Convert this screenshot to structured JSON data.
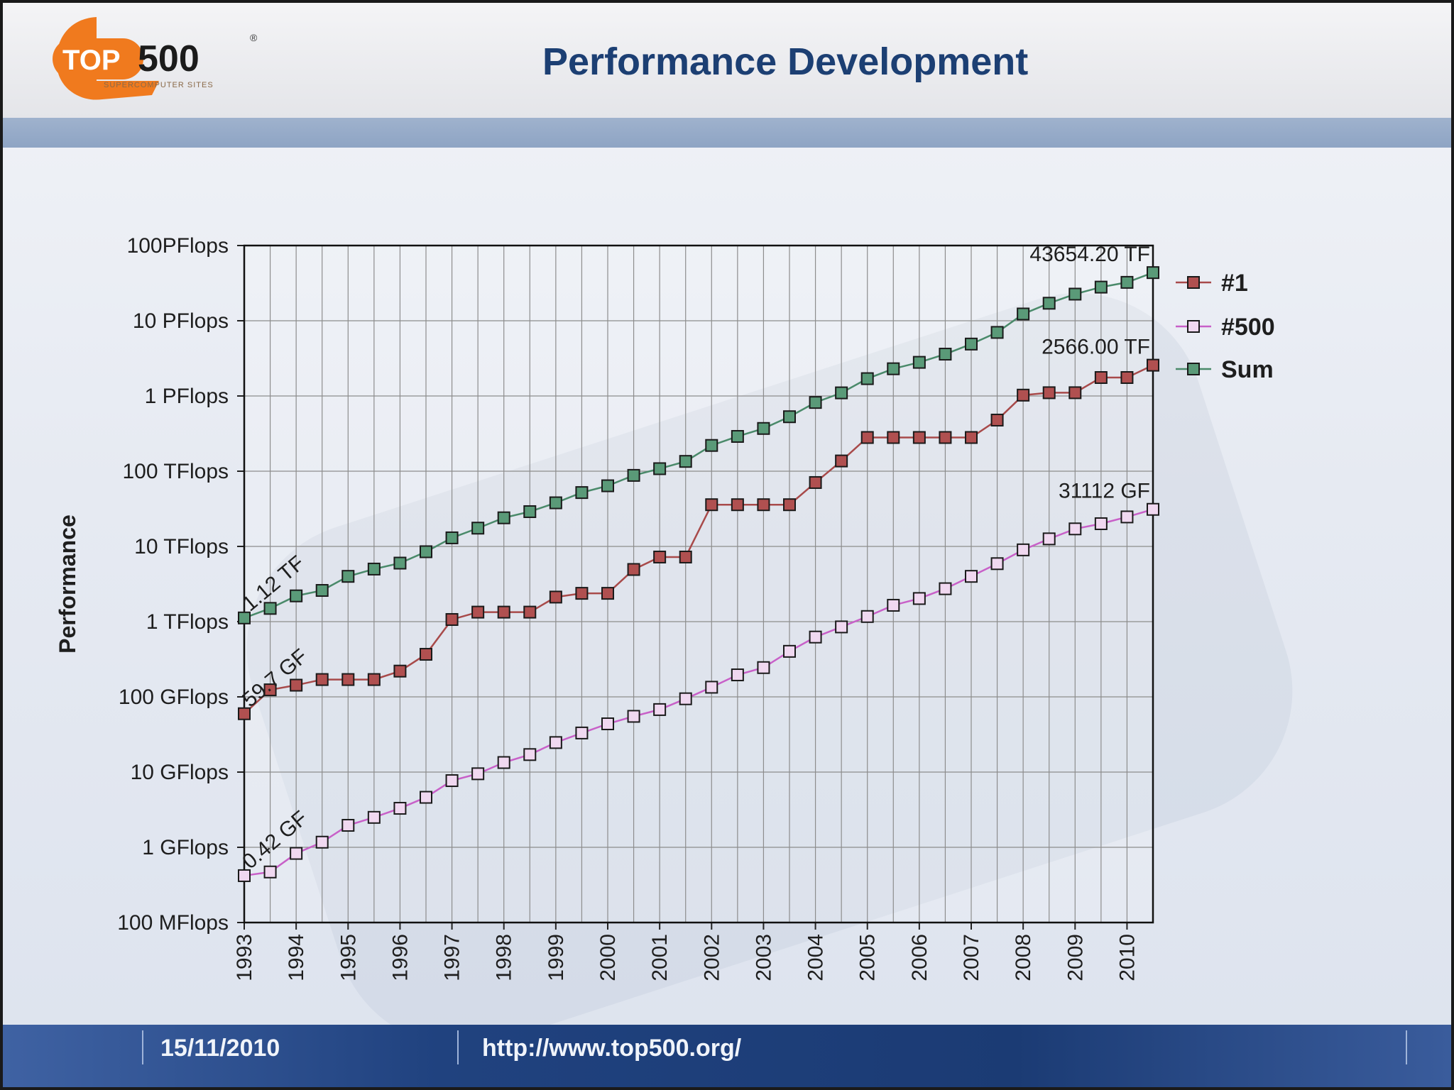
{
  "header": {
    "title": "Performance Development",
    "logo_text_top": "TOP",
    "logo_text_num": "500",
    "logo_subtitle": "SUPERCOMPUTER SITES",
    "logo_registered": "®"
  },
  "footer": {
    "date": "15/11/2010",
    "url": "http://www.top500.org/"
  },
  "colors": {
    "series_1": "#a84a4a",
    "series_500": "#c860c8",
    "series_sum": "#4a8a6a",
    "title": "#1c3f73"
  },
  "chart_data": {
    "type": "line",
    "title": "Performance Development",
    "xlabel": "",
    "ylabel": "Performance",
    "yscale": "log",
    "ylim_gflops": [
      0.1,
      100000000
    ],
    "grid": true,
    "legend_position": "right",
    "y_ticks": [
      {
        "value_gflops": 0.1,
        "label": "100 MFlops"
      },
      {
        "value_gflops": 1,
        "label": "1 GFlops"
      },
      {
        "value_gflops": 10,
        "label": "10 GFlops"
      },
      {
        "value_gflops": 100,
        "label": "100 GFlops"
      },
      {
        "value_gflops": 1000,
        "label": "1 TFlops"
      },
      {
        "value_gflops": 10000,
        "label": "10 TFlops"
      },
      {
        "value_gflops": 100000,
        "label": "100 TFlops"
      },
      {
        "value_gflops": 1000000,
        "label": "1 PFlops"
      },
      {
        "value_gflops": 10000000,
        "label": "10 PFlops"
      },
      {
        "value_gflops": 100000000,
        "label": "100PFlops"
      }
    ],
    "x_labels": [
      "1993",
      "1994",
      "1995",
      "1996",
      "1997",
      "1998",
      "1999",
      "2000",
      "2001",
      "2002",
      "2003",
      "2004",
      "2005",
      "2006",
      "2007",
      "2008",
      "2009",
      "2010"
    ],
    "x_start_year": 1993,
    "x_end_year": 2010.5,
    "x": [
      1993.0,
      1993.5,
      1994.0,
      1994.5,
      1995.0,
      1995.5,
      1996.0,
      1996.5,
      1997.0,
      1997.5,
      1998.0,
      1998.5,
      1999.0,
      1999.5,
      2000.0,
      2000.5,
      2001.0,
      2001.5,
      2002.0,
      2002.5,
      2003.0,
      2003.5,
      2004.0,
      2004.5,
      2005.0,
      2005.5,
      2006.0,
      2006.5,
      2007.0,
      2007.5,
      2008.0,
      2008.5,
      2009.0,
      2009.5,
      2010.0,
      2010.5
    ],
    "series": [
      {
        "name": "Sum",
        "values": [
          1120,
          1500,
          2200,
          2600,
          4000,
          5000,
          6000,
          8500,
          13000,
          17500,
          24000,
          29000,
          38000,
          52000,
          64000,
          88000,
          108000,
          135000,
          220000,
          290000,
          370000,
          530000,
          820000,
          1100000,
          1700000,
          2300000,
          2800000,
          3600000,
          4900000,
          7000000,
          12300000,
          17100000,
          22600000,
          28000000,
          32400000,
          43654200
        ]
      },
      {
        "name": "#1",
        "values": [
          59.7,
          124,
          143,
          170,
          170,
          170,
          220,
          368,
          1068,
          1338,
          1338,
          1338,
          2121,
          2379,
          2379,
          4938,
          7226,
          7226,
          35860,
          35860,
          35860,
          35860,
          70720,
          136800,
          280600,
          280600,
          280600,
          280600,
          280600,
          478200,
          1026000,
          1105000,
          1105000,
          1759000,
          1759000,
          2566000
        ]
      },
      {
        "name": "#500",
        "values": [
          0.42,
          0.47,
          0.83,
          1.17,
          1.96,
          2.5,
          3.3,
          4.62,
          7.7,
          9.5,
          13.4,
          17.1,
          24.7,
          33.1,
          43.8,
          55.1,
          67.8,
          94.3,
          134.3,
          196,
          245,
          403,
          624,
          851,
          1170,
          1650,
          2030,
          2740,
          4000,
          5900,
          9000,
          12600,
          17100,
          20050,
          24670,
          31112
        ]
      }
    ],
    "annotations": [
      {
        "series": "Sum",
        "position": "start",
        "label": "1.12 TF"
      },
      {
        "series": "#1",
        "position": "start",
        "label": "59.7 GF"
      },
      {
        "series": "#500",
        "position": "start",
        "label": "0.42 GF"
      },
      {
        "series": "Sum",
        "position": "end",
        "label": "43654.20 TF"
      },
      {
        "series": "#1",
        "position": "end",
        "label": "2566.00 TF"
      },
      {
        "series": "#500",
        "position": "end",
        "label": "31112 GF"
      }
    ],
    "legend": [
      "#1",
      "#500",
      "Sum"
    ]
  }
}
